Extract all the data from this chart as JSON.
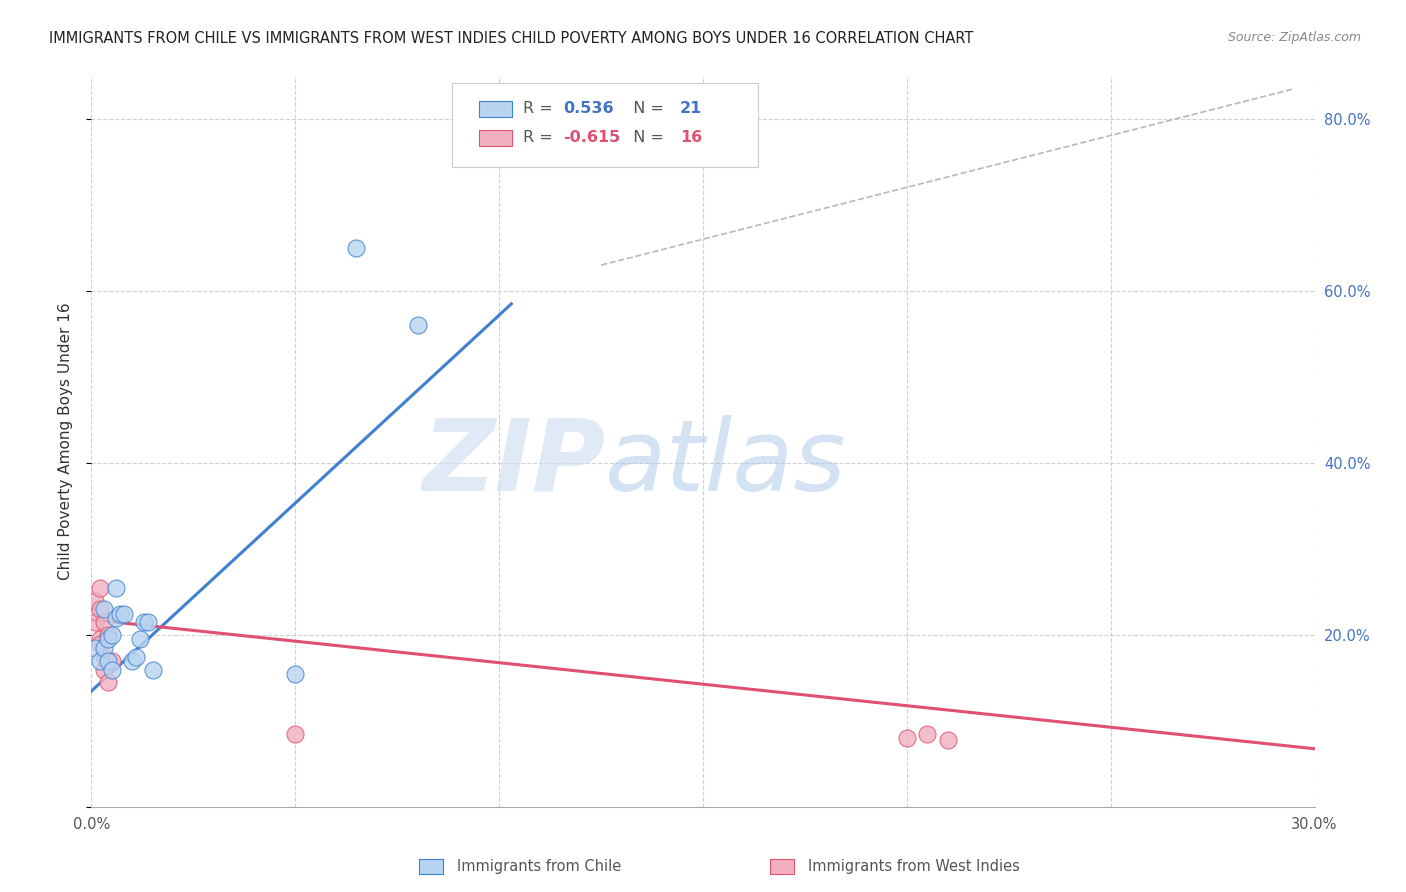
{
  "title": "IMMIGRANTS FROM CHILE VS IMMIGRANTS FROM WEST INDIES CHILD POVERTY AMONG BOYS UNDER 16 CORRELATION CHART",
  "source": "Source: ZipAtlas.com",
  "ylabel": "Child Poverty Among Boys Under 16",
  "xlim": [
    0.0,
    0.3
  ],
  "ylim": [
    0.0,
    0.85
  ],
  "xticks": [
    0.0,
    0.05,
    0.1,
    0.15,
    0.2,
    0.25,
    0.3
  ],
  "xticklabels": [
    "0.0%",
    "",
    "",
    "",
    "",
    "",
    "30.0%"
  ],
  "yticks": [
    0.0,
    0.2,
    0.4,
    0.6,
    0.8
  ],
  "ytick_labels_right": [
    "",
    "20.0%",
    "40.0%",
    "60.0%",
    "80.0%"
  ],
  "R_chile": 0.536,
  "N_chile": 21,
  "R_wi": -0.615,
  "N_wi": 16,
  "chile_color": "#b8d4f0",
  "wi_color": "#f0b0c0",
  "chile_line_color": "#4080d0",
  "wi_line_color": "#e05070",
  "diagonal_color": "#b8b8b8",
  "watermark_zip": "ZIP",
  "watermark_atlas": "atlas",
  "chile_scatter_x": [
    0.001,
    0.002,
    0.003,
    0.003,
    0.004,
    0.004,
    0.005,
    0.005,
    0.006,
    0.006,
    0.007,
    0.008,
    0.01,
    0.011,
    0.012,
    0.013,
    0.014,
    0.015,
    0.05,
    0.065,
    0.08
  ],
  "chile_scatter_y": [
    0.185,
    0.17,
    0.23,
    0.185,
    0.195,
    0.17,
    0.2,
    0.16,
    0.22,
    0.255,
    0.225,
    0.225,
    0.17,
    0.175,
    0.195,
    0.215,
    0.215,
    0.16,
    0.155,
    0.65,
    0.56
  ],
  "wi_scatter_x": [
    0.001,
    0.001,
    0.002,
    0.002,
    0.002,
    0.002,
    0.003,
    0.003,
    0.003,
    0.004,
    0.004,
    0.005,
    0.05,
    0.2,
    0.205,
    0.21
  ],
  "wi_scatter_y": [
    0.215,
    0.24,
    0.195,
    0.23,
    0.255,
    0.19,
    0.215,
    0.175,
    0.16,
    0.2,
    0.145,
    0.17,
    0.085,
    0.08,
    0.085,
    0.078
  ],
  "chile_line_x": [
    0.0,
    0.103
  ],
  "chile_line_y": [
    0.135,
    0.585
  ],
  "wi_line_x": [
    0.0,
    0.3
  ],
  "wi_line_y": [
    0.218,
    0.068
  ],
  "diag_line_x": [
    0.125,
    0.295
  ],
  "diag_line_y": [
    0.63,
    0.835
  ],
  "legend_chile": "Immigrants from Chile",
  "legend_wi": "Immigrants from West Indies",
  "background_color": "#ffffff",
  "grid_color": "#d0d0d0"
}
